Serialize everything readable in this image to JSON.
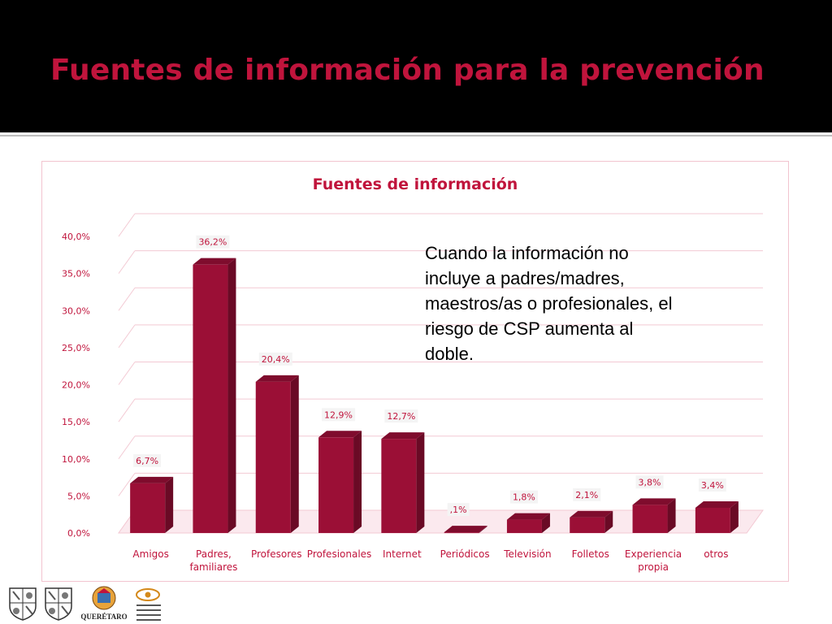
{
  "slide": {
    "title": "Fuentes de información para la prevención",
    "callout": "Cuando la información no incluye a padres/madres, maestros/as o profesionales, el riesgo de CSP aumenta al doble."
  },
  "logos": {
    "queretaro": "QUERÉTARO"
  },
  "colors": {
    "bar_front": "#9b0f36",
    "bar_side": "#6a0a25",
    "bar_top": "#7f0c2d",
    "title_red": "#c0143c",
    "label_text": "#c0143c"
  },
  "chart_data": {
    "type": "bar",
    "title": "Fuentes de información",
    "categories": [
      [
        "Amigos"
      ],
      [
        "Padres,",
        "familiares"
      ],
      [
        "Profesores"
      ],
      [
        "Profesionales"
      ],
      [
        "Internet"
      ],
      [
        "Periódicos"
      ],
      [
        "Televisión"
      ],
      [
        "Folletos"
      ],
      [
        "Experiencia",
        "propia"
      ],
      [
        "otros"
      ]
    ],
    "values": [
      6.7,
      36.2,
      20.4,
      12.9,
      12.7,
      0.1,
      1.8,
      2.1,
      3.8,
      3.4
    ],
    "data_labels": [
      "6,7%",
      "36,2%",
      "20,4%",
      "12,9%",
      "12,7%",
      ",1%",
      "1,8%",
      "2,1%",
      "3,8%",
      "3,4%"
    ],
    "ylim": [
      0,
      40
    ],
    "yticks": [
      0,
      5,
      10,
      15,
      20,
      25,
      30,
      35,
      40
    ],
    "ytick_labels": [
      "0,0%",
      "5,0%",
      "10,0%",
      "15,0%",
      "20,0%",
      "25,0%",
      "30,0%",
      "35,0%",
      "40,0%"
    ],
    "grid": true,
    "style": "3d-column"
  }
}
